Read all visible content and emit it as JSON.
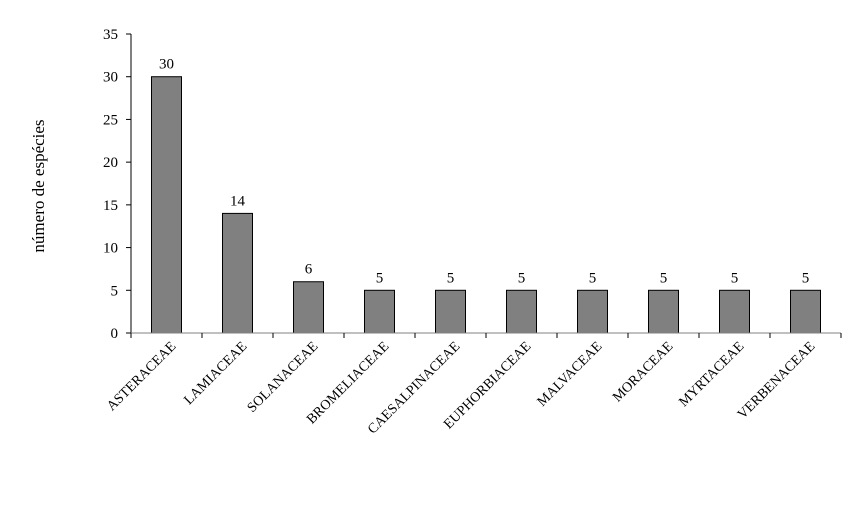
{
  "chart_data": {
    "type": "bar",
    "title": "",
    "xlabel": "",
    "ylabel": "número de espécies",
    "categories": [
      "ASTERACEAE",
      "LAMIACEAE",
      "SOLANACEAE",
      "BROMELIACEAE",
      "CAESALPINACEAE",
      "EUPHORBIACEAE",
      "MALVACEAE",
      "MORACEAE",
      "MYRTACEAE",
      "VERBENACEAE"
    ],
    "values": [
      30,
      14,
      6,
      5,
      5,
      5,
      5,
      5,
      5,
      5
    ],
    "ylim": [
      0,
      35
    ],
    "yticks": [
      0,
      5,
      10,
      15,
      20,
      25,
      30,
      35
    ],
    "grid": false,
    "legend": "none",
    "bar_color": "#808080",
    "bar_edge_color": "#000000"
  }
}
